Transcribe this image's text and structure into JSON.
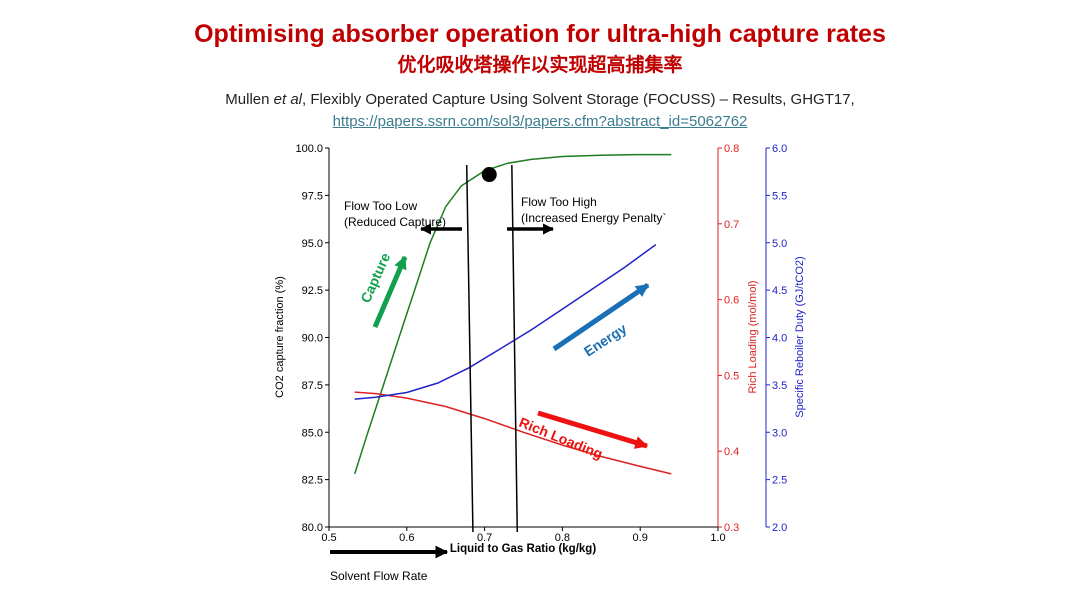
{
  "slide": {
    "title": "Optimising absorber operation for ultra-high capture rates",
    "subtitle_zh": "优化吸收塔操作以实现超高捕集率",
    "citation_author": "Mullen",
    "citation_etal": "et al",
    "citation_rest": ", Flexibly Operated Capture Using Solvent Storage (FOCUSS) – Results, GHGT17,",
    "link": "https://papers.ssrn.com/sol3/papers.cfm?abstract_id=5062762",
    "solvent_flow_label": "Solvent  Flow Rate"
  },
  "colors": {
    "title": "#c00000",
    "capture": "#1e7d1e",
    "rich": "#dd2222",
    "energy": "#2222c8",
    "capture_arrow": "#12a050",
    "energy_arrow": "#1a6fb5",
    "rich_arrow": "#ee1111"
  },
  "chart_data": {
    "type": "line",
    "xlabel": "Liquid to Gas Ratio (kg/kg)",
    "xlim": [
      0.5,
      1.0
    ],
    "xticks": [
      "0.5",
      "0.6",
      "0.7",
      "0.8",
      "0.9",
      "1.0"
    ],
    "left_axis": {
      "label": "CO2 capture fraction (%)",
      "ylim": [
        80.0,
        100.0
      ],
      "ticks": [
        "80.0",
        "82.5",
        "85.0",
        "87.5",
        "90.0",
        "92.5",
        "95.0",
        "97.5",
        "100.0"
      ]
    },
    "right_axis_1": {
      "label": "Rich Loading (mol/mol)",
      "ylim": [
        0.3,
        0.8
      ],
      "ticks": [
        "0.3",
        "0.4",
        "0.5",
        "0.6",
        "0.7",
        "0.8"
      ]
    },
    "right_axis_2": {
      "label": "Specific Reboiler Duty (GJ/tCO2)",
      "ylim": [
        2.0,
        6.0
      ],
      "ticks": [
        "2.0",
        "2.5",
        "3.0",
        "3.5",
        "4.0",
        "4.5",
        "5.0",
        "5.5",
        "6.0"
      ]
    },
    "series": [
      {
        "name": "Capture",
        "axis": "left",
        "x": [
          0.533,
          0.55,
          0.57,
          0.59,
          0.61,
          0.63,
          0.65,
          0.67,
          0.7,
          0.73,
          0.76,
          0.8,
          0.85,
          0.9,
          0.94
        ],
        "values": [
          82.8,
          85.0,
          87.5,
          90.0,
          92.5,
          95.0,
          96.9,
          98.0,
          98.8,
          99.2,
          99.4,
          99.55,
          99.62,
          99.65,
          99.65
        ]
      },
      {
        "name": "Rich Loading",
        "axis": "right1",
        "x": [
          0.533,
          0.56,
          0.6,
          0.65,
          0.7,
          0.75,
          0.8,
          0.85,
          0.9,
          0.94
        ],
        "values": [
          0.478,
          0.476,
          0.47,
          0.459,
          0.443,
          0.425,
          0.408,
          0.393,
          0.38,
          0.37
        ]
      },
      {
        "name": "Energy",
        "axis": "right2",
        "x": [
          0.533,
          0.56,
          0.6,
          0.64,
          0.68,
          0.72,
          0.76,
          0.8,
          0.84,
          0.88,
          0.92
        ],
        "values": [
          3.35,
          3.37,
          3.42,
          3.52,
          3.68,
          3.88,
          4.08,
          4.3,
          4.52,
          4.74,
          4.98
        ]
      }
    ],
    "vertical_lines": [
      {
        "x_top": 0.677,
        "x_bottom": 0.685
      },
      {
        "x_top": 0.735,
        "x_bottom": 0.742
      }
    ],
    "optimum_point": {
      "x": 0.706,
      "y": 98.6
    },
    "annotations": {
      "flow_low_1": "Flow Too Low",
      "flow_low_2": "(Reduced Capture)",
      "flow_high_1": "Flow Too High",
      "flow_high_2": "(Increased Energy Penalty`",
      "capture_label": "Capture",
      "energy_label": "Energy",
      "rich_label": "Rich Loading"
    }
  }
}
